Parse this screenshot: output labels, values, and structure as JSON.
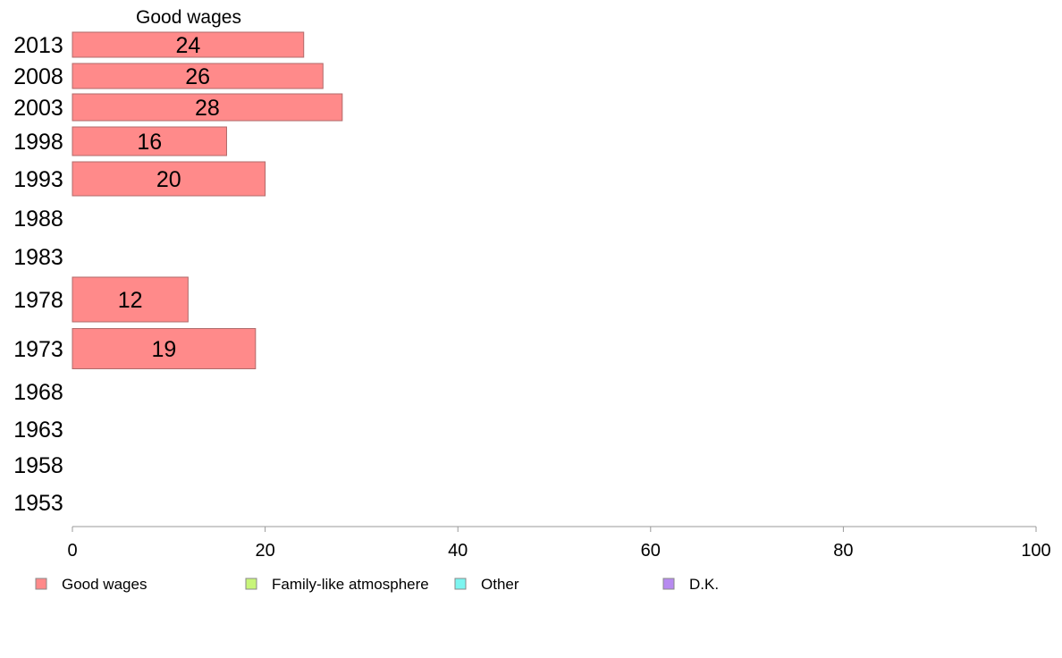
{
  "chart_data": {
    "type": "bar",
    "orientation": "horizontal",
    "stacked": true,
    "title": "",
    "xlabel": "",
    "ylabel": "",
    "xlim": [
      0,
      100
    ],
    "x_ticks": [
      0,
      20,
      40,
      60,
      80,
      100
    ],
    "categories": [
      "2013",
      "2008",
      "2003",
      "1998",
      "1993",
      "1988",
      "1983",
      "1978",
      "1973",
      "1968",
      "1963",
      "1958",
      "1953"
    ],
    "series": [
      {
        "name": "Good wages",
        "color": "#ff8a8a",
        "values": [
          24,
          26,
          28,
          16,
          20,
          null,
          null,
          12,
          19,
          null,
          null,
          null,
          null
        ]
      },
      {
        "name": "Family-like atmosphere",
        "color": "#c8f57a",
        "values": [
          null,
          null,
          null,
          null,
          null,
          null,
          null,
          null,
          null,
          null,
          null,
          null,
          null
        ]
      },
      {
        "name": "Other",
        "color": "#7cf5f0",
        "values": [
          null,
          null,
          null,
          null,
          null,
          null,
          null,
          null,
          null,
          null,
          null,
          null,
          null
        ]
      },
      {
        "name": "D.K.",
        "color": "#b78af0",
        "values": [
          null,
          null,
          null,
          null,
          null,
          null,
          null,
          null,
          null,
          null,
          null,
          null,
          null
        ]
      }
    ],
    "column_header": "Good wages",
    "grid": false,
    "legend_position": "bottom"
  }
}
